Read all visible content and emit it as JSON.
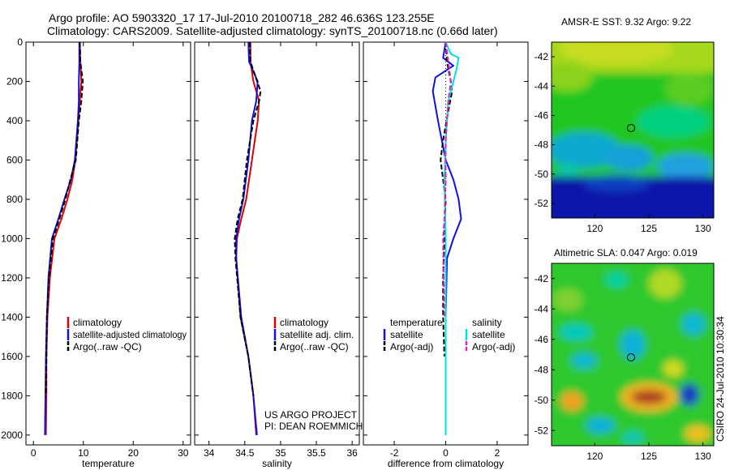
{
  "figure": {
    "title_line1": "Argo profile: AO 5903320_17 17-Jul-2010 20100718_282 46.636S 123.255E",
    "title_line2": "Climatology: CARS2009. Satellite-adjusted climatology: synTS_20100718.nc (0.66d later)",
    "project_line1": "US ARGO PROJECT",
    "project_line2": "PI: DEAN ROEMMICH",
    "credit": "CSIRO 24-Jul-2010 10:30:34"
  },
  "colors": {
    "climatology": "#e00000",
    "satellite": "#1010e0",
    "argo": "#000000",
    "salinity_satellite": "#00e0e0",
    "salinity_argo": "#e020c0"
  },
  "chart_data": [
    {
      "type": "line",
      "name": "temperature",
      "xlabel": "temperature",
      "ylabel": "",
      "xlim": [
        -1.5,
        31.5
      ],
      "ylim": [
        2050,
        0
      ],
      "xticks": [
        0,
        10,
        20,
        30
      ],
      "yticks": [
        0,
        200,
        400,
        600,
        800,
        1000,
        1200,
        1400,
        1600,
        1800,
        2000
      ],
      "legend": [
        "climatology",
        "satellite-adjusted climatology",
        "Argo(..raw -QC)"
      ],
      "series": [
        {
          "name": "climatology",
          "color": "#e00000",
          "dash": "",
          "x": [
            9.3,
            9.4,
            9.6,
            9.3,
            9.0,
            8.4,
            7.8,
            6.8,
            5.6,
            4.2,
            3.3,
            2.8,
            2.6,
            2.6,
            2.5
          ],
          "y": [
            0,
            100,
            200,
            300,
            400,
            600,
            700,
            800,
            900,
            1000,
            1200,
            1400,
            1600,
            1800,
            2000
          ]
        },
        {
          "name": "satellite-adjusted climatology",
          "color": "#1010e0",
          "dash": "",
          "x": [
            9.2,
            9.2,
            9.1,
            9.1,
            8.9,
            8.3,
            7.5,
            6.2,
            5.0,
            3.7,
            3.0,
            2.7,
            2.5,
            2.4,
            2.3
          ],
          "y": [
            0,
            100,
            200,
            300,
            400,
            600,
            700,
            800,
            900,
            1000,
            1200,
            1400,
            1600,
            1800,
            2000
          ]
        },
        {
          "name": "Argo(..raw -QC)",
          "color": "#000000",
          "dash": "6,3",
          "x": [
            9.3,
            9.4,
            9.9,
            9.6,
            9.1,
            8.5,
            7.4,
            6.4,
            5.2,
            3.9,
            3.1,
            2.7,
            2.6,
            2.5
          ],
          "y": [
            0,
            100,
            200,
            300,
            400,
            600,
            700,
            800,
            900,
            1000,
            1200,
            1400,
            1600,
            1800
          ]
        }
      ]
    },
    {
      "type": "line",
      "name": "salinity",
      "xlabel": "salinity",
      "ylabel": "",
      "xlim": [
        33.8,
        36.1
      ],
      "ylim": [
        2050,
        0
      ],
      "xticks": [
        34,
        34.5,
        35,
        35.5,
        36
      ],
      "xticklabels": [
        "34",
        "34.5",
        "35",
        "35.5",
        "36"
      ],
      "legend": [
        "climatology",
        "satellite adj. clim.",
        "Argo(..raw -QC)"
      ],
      "series": [
        {
          "name": "climatology",
          "color": "#e00000",
          "dash": "",
          "x": [
            34.58,
            34.58,
            34.62,
            34.7,
            34.68,
            34.6,
            34.52,
            34.45,
            34.39,
            34.38,
            34.44,
            34.55,
            34.62,
            34.66
          ],
          "y": [
            0,
            100,
            200,
            300,
            400,
            600,
            800,
            900,
            1000,
            1100,
            1400,
            1600,
            1800,
            2000
          ]
        },
        {
          "name": "satellite adj. clim.",
          "color": "#1010e0",
          "dash": "",
          "x": [
            34.55,
            34.56,
            34.68,
            34.66,
            34.6,
            34.55,
            34.48,
            34.42,
            34.38,
            34.38,
            34.45,
            34.55,
            34.62,
            34.67
          ],
          "y": [
            0,
            100,
            200,
            300,
            400,
            600,
            800,
            900,
            1000,
            1100,
            1400,
            1600,
            1800,
            2000
          ]
        },
        {
          "name": "Argo(..raw -QC)",
          "color": "#000000",
          "dash": "6,3",
          "x": [
            34.57,
            34.58,
            34.72,
            34.7,
            34.62,
            34.53,
            34.47,
            34.4,
            34.36,
            34.37,
            34.44,
            34.55,
            34.62
          ],
          "y": [
            0,
            100,
            250,
            300,
            400,
            600,
            800,
            900,
            1000,
            1100,
            1400,
            1600,
            1800
          ]
        }
      ]
    },
    {
      "type": "line",
      "name": "difference from climatology",
      "xlabel": "difference from climatology",
      "ylabel": "",
      "xlim": [
        -3.2,
        3.2
      ],
      "ylim": [
        2050,
        0
      ],
      "xticks": [
        -2,
        0,
        2
      ],
      "legend_headers": [
        "temperature",
        "salinity"
      ],
      "legend": [
        "satellite",
        "Argo(-adj)",
        "satellite",
        "Argo(-adj)"
      ],
      "series": [
        {
          "name": "temperature satellite",
          "color": "#1010e0",
          "dash": "",
          "x": [
            0.0,
            -0.1,
            0.3,
            -0.4,
            -0.5,
            -0.3,
            0.0,
            0.3,
            0.5,
            0.6,
            0.3,
            0.05,
            0.0,
            0.0,
            0.0
          ],
          "y": [
            0,
            80,
            120,
            180,
            250,
            400,
            600,
            700,
            800,
            900,
            1000,
            1100,
            1400,
            1800,
            2000
          ]
        },
        {
          "name": "temperature Argo(-adj)",
          "color": "#000000",
          "dash": "6,3",
          "x": [
            0.0,
            0.05,
            0.2,
            0.25,
            0.1,
            -0.1,
            -0.2,
            -0.1,
            0.0,
            -0.05,
            -0.1,
            -0.1,
            -0.05
          ],
          "y": [
            0,
            100,
            200,
            250,
            350,
            500,
            600,
            700,
            800,
            1000,
            1200,
            1400,
            1600
          ]
        },
        {
          "name": "salinity satellite",
          "color": "#00e0e0",
          "dash": "",
          "x": [
            0.0,
            0.2,
            0.5,
            0.4,
            0.1,
            0.0,
            -0.05,
            0.0,
            0.0,
            0.0
          ],
          "y": [
            0,
            60,
            80,
            150,
            300,
            500,
            700,
            1000,
            1500,
            2000
          ]
        },
        {
          "name": "salinity Argo(-adj)",
          "color": "#e020c0",
          "dash": "6,3",
          "x": [
            0.0,
            0.1,
            0.2,
            0.1,
            0.0,
            0.0,
            -0.05,
            -0.1,
            -0.08,
            -0.05
          ],
          "y": [
            0,
            100,
            200,
            300,
            500,
            700,
            900,
            1000,
            1200,
            1400
          ]
        }
      ]
    },
    {
      "type": "heatmap",
      "title": "AMSR-E SST: 9.32 Argo: 9.22",
      "xlim": [
        116,
        131
      ],
      "ylim": [
        -53,
        -41
      ],
      "xticks": [
        120,
        125,
        130
      ],
      "yticks": [
        -42,
        -44,
        -46,
        -48,
        -50,
        -52
      ],
      "marker": {
        "lon": 123.255,
        "lat": -46.636
      }
    },
    {
      "type": "heatmap",
      "title": "Altimetric SLA: 0.047 Argo: 0.019",
      "xlim": [
        116,
        131
      ],
      "ylim": [
        -53,
        -41
      ],
      "xticks": [
        120,
        125,
        130
      ],
      "yticks": [
        -42,
        -44,
        -46,
        -48,
        -50,
        -52
      ],
      "marker": {
        "lon": 123.255,
        "lat": -46.636
      }
    }
  ]
}
